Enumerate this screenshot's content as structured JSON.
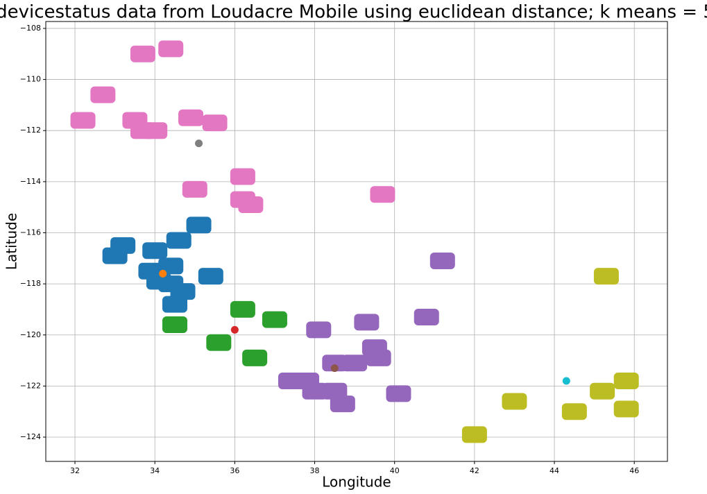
{
  "chart_data": {
    "type": "scatter",
    "title": "devicestatus data from Loudacre Mobile using euclidean distance; k means = 5",
    "x_label": "Longitude",
    "y_label": "Latitude",
    "xlim": [
      31.27,
      46.83
    ],
    "ylim": [
      -124.95,
      -107.73
    ],
    "xticks": [
      32,
      34,
      36,
      38,
      40,
      42,
      44,
      46
    ],
    "yticks": [
      {
        "value": -108,
        "label": "−108"
      },
      {
        "value": -110,
        "label": "−110"
      },
      {
        "value": -112,
        "label": "−112"
      },
      {
        "value": -114,
        "label": "−114"
      },
      {
        "value": -116,
        "label": "−116"
      },
      {
        "value": -118,
        "label": "−118"
      },
      {
        "value": -120,
        "label": "−120"
      },
      {
        "value": -122,
        "label": "−122"
      },
      {
        "value": -124,
        "label": "−124"
      }
    ],
    "grid": true,
    "series": [
      {
        "color": "#e377c2",
        "x": [
          33.7,
          34.4,
          32.7,
          32.2,
          33.5,
          33.7,
          34.0,
          34.9,
          35.5,
          35.0,
          36.2,
          36.2,
          36.4,
          39.7
        ],
        "y": [
          -109.0,
          -108.8,
          -110.6,
          -111.6,
          -111.6,
          -112.0,
          -112.0,
          -111.5,
          -111.7,
          -114.3,
          -113.8,
          -114.7,
          -114.9,
          -114.5
        ]
      },
      {
        "color": "#1f77b4",
        "x": [
          35.1,
          34.6,
          34.0,
          33.2,
          33.0,
          33.9,
          34.4,
          34.1,
          34.4,
          34.7,
          34.5,
          35.4
        ],
        "y": [
          -115.7,
          -116.3,
          -116.7,
          -116.5,
          -116.9,
          -117.5,
          -117.3,
          -117.9,
          -118.0,
          -118.3,
          -118.8,
          -117.7
        ]
      },
      {
        "color": "#2ca02c",
        "x": [
          34.5,
          35.6,
          36.2,
          36.5,
          37.0
        ],
        "y": [
          -119.6,
          -120.3,
          -119.0,
          -120.9,
          -119.4
        ]
      },
      {
        "color": "#9467bd",
        "x": [
          41.2,
          40.8,
          39.3,
          38.1,
          39.5,
          39.6,
          38.5,
          39.0,
          37.4,
          37.8,
          38.0,
          38.5,
          38.7,
          40.1
        ],
        "y": [
          -117.1,
          -119.3,
          -119.5,
          -119.8,
          -120.5,
          -120.9,
          -121.1,
          -121.1,
          -121.8,
          -121.8,
          -122.2,
          -122.2,
          -122.7,
          -122.3
        ]
      },
      {
        "color": "#bcbd22",
        "x": [
          45.3,
          45.2,
          45.8,
          45.8,
          44.5,
          43.0,
          42.0
        ],
        "y": [
          -117.7,
          -122.2,
          -121.8,
          -122.9,
          -123.0,
          -122.6,
          -123.9
        ]
      }
    ],
    "centers": {
      "x": [
        35.1,
        34.2,
        36.0,
        38.5,
        44.3
      ],
      "y": [
        -112.5,
        -117.6,
        -119.8,
        -121.3,
        -121.8
      ],
      "colors": [
        "#7f7f7f",
        "#ff7f0e",
        "#d62728",
        "#8c564b",
        "#17becf"
      ]
    }
  }
}
